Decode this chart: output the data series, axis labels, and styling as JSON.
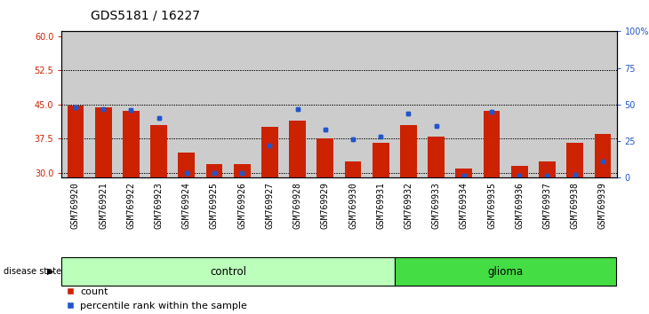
{
  "title": "GDS5181 / 16227",
  "samples": [
    "GSM769920",
    "GSM769921",
    "GSM769922",
    "GSM769923",
    "GSM769924",
    "GSM769925",
    "GSM769926",
    "GSM769927",
    "GSM769928",
    "GSM769929",
    "GSM769930",
    "GSM769931",
    "GSM769932",
    "GSM769933",
    "GSM769934",
    "GSM769935",
    "GSM769936",
    "GSM769937",
    "GSM769938",
    "GSM769939"
  ],
  "counts": [
    44.8,
    44.3,
    43.5,
    40.5,
    34.5,
    32.0,
    32.0,
    40.0,
    41.5,
    37.5,
    32.5,
    36.5,
    40.5,
    38.0,
    31.0,
    43.5,
    31.5,
    32.5,
    36.5,
    38.5
  ],
  "percentile_values": [
    48,
    47,
    46,
    41,
    3,
    3,
    3,
    22,
    47,
    33,
    26,
    28,
    44,
    35,
    1,
    45,
    1,
    1,
    2,
    11
  ],
  "control_count": 12,
  "glioma_count": 8,
  "ylim_left": [
    29,
    61
  ],
  "yticks_left": [
    30,
    37.5,
    45,
    52.5,
    60
  ],
  "yticks_right": [
    0,
    25,
    50,
    75,
    100
  ],
  "bar_color": "#cc2200",
  "marker_color": "#2255cc",
  "control_color": "#bbffbb",
  "glioma_color": "#44dd44",
  "bg_color": "#cccccc",
  "title_fontsize": 10,
  "tick_fontsize": 7,
  "legend_fontsize": 8
}
